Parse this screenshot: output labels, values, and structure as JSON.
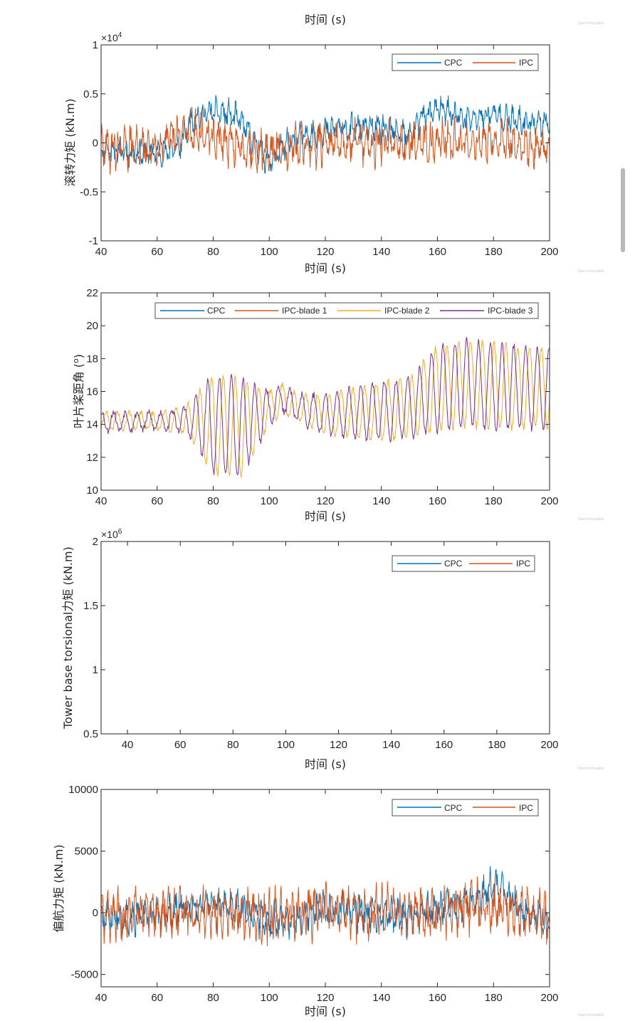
{
  "page_header": {
    "xlabel": "时间 (s)"
  },
  "watermark": "Open Immutable",
  "colors": {
    "cpc": "#0072BD",
    "ipc": "#D95319",
    "blade1": "#D95319",
    "blade2": "#EDB120",
    "blade3": "#7E2F8E",
    "axis": "#262626"
  },
  "chart_data": [
    {
      "type": "line",
      "title": "",
      "xlabel": "时间 (s)",
      "ylabel": "滚转力矩 (kN.m)",
      "exponent_label": "×10",
      "exponent": "4",
      "xlim": [
        40,
        200
      ],
      "ylim": [
        -1,
        1
      ],
      "xticks": [
        40,
        60,
        80,
        100,
        120,
        140,
        160,
        180,
        200
      ],
      "yticks": [
        -1,
        -0.5,
        0,
        0.5,
        1
      ],
      "ytick_labels": [
        "-1",
        "-0.5",
        "0",
        "0.5",
        "1"
      ],
      "legend_position": "top-right",
      "series": [
        {
          "name": "CPC",
          "color": "#0072BD",
          "anchor_x": [
            40,
            50,
            60,
            68,
            72,
            80,
            85,
            90,
            95,
            100,
            105,
            110,
            115,
            120,
            125,
            130,
            135,
            140,
            145,
            150,
            155,
            160,
            165,
            170,
            175,
            180,
            185,
            190,
            195,
            200
          ],
          "anchor_y": [
            -0.05,
            -0.1,
            -0.1,
            -0.05,
            0.25,
            0.32,
            0.3,
            0.22,
            0.0,
            -0.2,
            -0.05,
            0.05,
            0.1,
            0.12,
            0.15,
            0.14,
            0.15,
            0.15,
            0.12,
            0.06,
            0.28,
            0.35,
            0.3,
            0.24,
            0.26,
            0.3,
            0.25,
            0.2,
            0.22,
            0.2
          ],
          "noise_amplitude": 0.13,
          "oscillation_period": 2.3,
          "points": 900,
          "seed": 11
        },
        {
          "name": "IPC",
          "color": "#D95319",
          "anchor_x": [
            40,
            60,
            70,
            80,
            90,
            100,
            120,
            140,
            160,
            180,
            200
          ],
          "anchor_y": [
            -0.05,
            -0.05,
            0.12,
            0.05,
            -0.05,
            -0.08,
            0.0,
            0.0,
            0.02,
            0.0,
            -0.05
          ],
          "noise_amplitude": 0.2,
          "oscillation_period": 2.1,
          "points": 900,
          "seed": 29
        }
      ]
    },
    {
      "type": "line",
      "title": "",
      "xlabel": "时间 (s)",
      "ylabel": "叶片桨距角 (°)",
      "ylabel_main": "叶片桨距角 (",
      "ylabel_sup": "o",
      "ylabel_close": ")",
      "xlim": [
        40,
        200
      ],
      "ylim": [
        10,
        22
      ],
      "xticks": [
        40,
        60,
        80,
        100,
        120,
        140,
        160,
        180,
        200
      ],
      "yticks": [
        10,
        12,
        14,
        16,
        18,
        20,
        22
      ],
      "ytick_labels": [
        "10",
        "12",
        "14",
        "16",
        "18",
        "20",
        "22"
      ],
      "legend_position": "top",
      "series": [
        {
          "name": "CPC",
          "color": "#0072BD",
          "show_line": false
        },
        {
          "name": "IPC-blade 1",
          "color": "#D95319",
          "show_line": false
        },
        {
          "name": "IPC-blade 2",
          "color": "#EDB120",
          "show_line": true,
          "phase": 2.094,
          "mean_x": [
            40,
            60,
            70,
            80,
            90,
            100,
            105,
            110,
            120,
            140,
            150,
            160,
            170,
            180,
            200
          ],
          "mean_y": [
            14.2,
            14.2,
            14.3,
            14.0,
            13.8,
            15.0,
            15.6,
            15.0,
            14.6,
            14.8,
            15.0,
            16.2,
            16.5,
            16.3,
            16.2
          ],
          "amp_x": [
            40,
            60,
            70,
            80,
            90,
            100,
            110,
            120,
            140,
            150,
            160,
            180,
            200
          ],
          "amp_y": [
            0.6,
            0.5,
            0.7,
            3.0,
            3.0,
            1.0,
            0.8,
            1.2,
            1.8,
            1.8,
            2.6,
            2.6,
            2.4
          ],
          "period": 4.2,
          "jitter": 0.18,
          "points": 700,
          "seed": 41
        },
        {
          "name": "IPC-blade 3",
          "color": "#7E2F8E",
          "show_line": true,
          "phase": 4.189,
          "mean_x": [
            40,
            60,
            70,
            80,
            90,
            100,
            105,
            110,
            120,
            140,
            150,
            160,
            170,
            180,
            200
          ],
          "mean_y": [
            14.2,
            14.2,
            14.3,
            14.0,
            13.8,
            15.0,
            15.6,
            15.0,
            14.6,
            14.8,
            15.0,
            16.2,
            16.5,
            16.3,
            16.2
          ],
          "amp_x": [
            40,
            60,
            70,
            80,
            90,
            100,
            110,
            120,
            140,
            150,
            160,
            180,
            200
          ],
          "amp_y": [
            0.6,
            0.5,
            0.7,
            3.0,
            3.0,
            1.0,
            0.8,
            1.2,
            1.8,
            1.8,
            2.6,
            2.6,
            2.4
          ],
          "period": 4.2,
          "jitter": 0.22,
          "points": 700,
          "seed": 53
        }
      ]
    },
    {
      "type": "line",
      "title": "",
      "xlabel": "时间 (s)",
      "ylabel": "Tower base torsional力矩 (kN.m)",
      "exponent_label": "×10",
      "exponent": "6",
      "xlim": [
        30,
        200
      ],
      "ylim": [
        0.5,
        2
      ],
      "xticks": [
        40,
        60,
        80,
        100,
        120,
        140,
        160,
        180,
        200
      ],
      "yticks": [
        0.5,
        1,
        1.5,
        2
      ],
      "ytick_labels": [
        "0.5",
        "1",
        "1.5",
        "2"
      ],
      "legend_position": "top-right",
      "series": [
        {
          "name": "CPC",
          "color": "#0072BD",
          "show_line": false
        },
        {
          "name": "IPC",
          "color": "#D95319",
          "show_line": false
        }
      ]
    },
    {
      "type": "line",
      "title": "",
      "xlabel": "时间 (s)",
      "ylabel": "偏航力矩 (kN.m)",
      "xlim": [
        40,
        200
      ],
      "ylim": [
        -6000,
        10000
      ],
      "xticks": [
        40,
        60,
        80,
        100,
        120,
        140,
        160,
        180,
        200
      ],
      "yticks": [
        -5000,
        0,
        5000,
        10000
      ],
      "ytick_labels": [
        "-5000",
        "0",
        "5000",
        "10000"
      ],
      "legend_position": "top-right",
      "series": [
        {
          "name": "CPC",
          "color": "#0072BD",
          "anchor_x": [
            40,
            60,
            70,
            80,
            90,
            100,
            110,
            120,
            130,
            140,
            150,
            160,
            170,
            175,
            180,
            185,
            190,
            200
          ],
          "anchor_y": [
            -200,
            -300,
            300,
            800,
            300,
            -800,
            -300,
            400,
            200,
            -300,
            -200,
            300,
            800,
            1200,
            2200,
            1500,
            200,
            -500
          ],
          "noise_amplitude": 1300,
          "oscillation_period": 2.2,
          "points": 900,
          "seed": 67
        },
        {
          "name": "IPC",
          "color": "#D95319",
          "anchor_x": [
            40,
            60,
            80,
            100,
            120,
            140,
            160,
            170,
            180,
            200
          ],
          "anchor_y": [
            -100,
            0,
            100,
            -300,
            300,
            0,
            0,
            500,
            200,
            -300
          ],
          "noise_amplitude": 1900,
          "oscillation_period": 2.0,
          "points": 900,
          "seed": 83
        }
      ]
    }
  ]
}
